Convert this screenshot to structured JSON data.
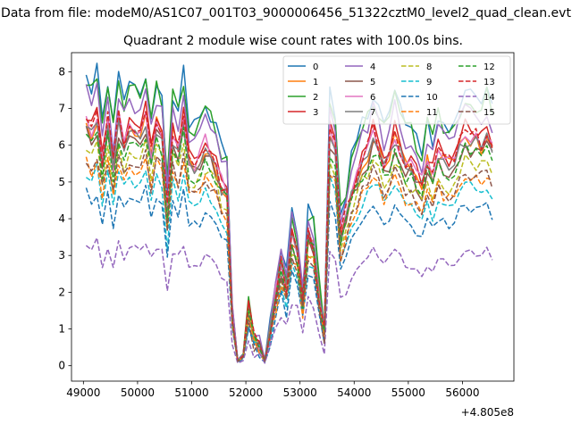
{
  "suptitle": "Data from file: modeM0/AS1C07_001T03_9000006456_51322cztM0_level2_quad_clean.evt",
  "chart_data": {
    "type": "line",
    "title": "Quadrant 2 module wise count rates with 100.0s bins.",
    "xlabel": "",
    "ylabel": "",
    "x_offset_label": "+4.805e8",
    "xlim": [
      48780,
      56950
    ],
    "ylim": [
      -0.42,
      8.52
    ],
    "xticks": [
      49000,
      50000,
      51000,
      52000,
      53000,
      54000,
      55000,
      56000
    ],
    "yticks": [
      0,
      1,
      2,
      3,
      4,
      5,
      6,
      7,
      8
    ],
    "grid": false,
    "legend": {
      "placement": "top-right",
      "columns": 4
    },
    "x_segments": [
      {
        "start": 49050,
        "end": 50950,
        "step": 100
      },
      {
        "start": 51050,
        "end": 53950,
        "step": 100
      },
      {
        "start": 54050,
        "end": 56550,
        "step": 100
      }
    ],
    "template": [
      0.98,
      0.93,
      0.99,
      0.82,
      0.97,
      0.8,
      0.98,
      0.88,
      0.96,
      0.93,
      0.9,
      0.99,
      0.84,
      0.96,
      0.92,
      0.62,
      0.93,
      0.86,
      0.98,
      0.82,
      0.8,
      0.82,
      0.88,
      0.85,
      0.8,
      0.72,
      0.7,
      0.2,
      0.02,
      0.04,
      0.22,
      0.1,
      0.08,
      0.02,
      0.14,
      0.28,
      0.4,
      0.3,
      0.52,
      0.45,
      0.26,
      0.52,
      0.48,
      0.28,
      0.12,
      0.92,
      0.86,
      0.52,
      0.6,
      0.7,
      0.76,
      0.82,
      0.85,
      0.92,
      0.88,
      0.8,
      0.84,
      0.92,
      0.86,
      0.8,
      0.8,
      0.76,
      0.72,
      0.82,
      0.76,
      0.85,
      0.82,
      0.8,
      0.82,
      0.88,
      0.92,
      0.9,
      0.9,
      0.88,
      0.92,
      0.86,
      0.82,
      0.9,
      0.84,
      0.86,
      0.9,
      0.96,
      0.9,
      0.95,
      0.9,
      0.92,
      0.93,
      0.95,
      0.95,
      0.96,
      0.94,
      0.95,
      0.96,
      0.12,
      0.0,
      0.0,
      0.0,
      0.0,
      0.0,
      0.0,
      0.0,
      0.0,
      0.0,
      0.0,
      0.0,
      0.0,
      0.0,
      0.72,
      0.06,
      0.52,
      0.04,
      0.86,
      0.02,
      0.52,
      0.34,
      0.7,
      0.55,
      0.66,
      0.25
    ],
    "series": [
      {
        "name": "0",
        "color": "#1f77b4",
        "dash": "solid",
        "peak": 8.05,
        "seed": 1
      },
      {
        "name": "1",
        "color": "#ff7f0e",
        "dash": "solid",
        "peak": 6.8,
        "seed": 2
      },
      {
        "name": "2",
        "color": "#2ca02c",
        "dash": "solid",
        "peak": 7.95,
        "seed": 3
      },
      {
        "name": "3",
        "color": "#d62728",
        "dash": "solid",
        "peak": 7.05,
        "seed": 4
      },
      {
        "name": "4",
        "color": "#9467bd",
        "dash": "solid",
        "peak": 7.6,
        "seed": 5
      },
      {
        "name": "5",
        "color": "#8c564b",
        "dash": "solid",
        "peak": 6.55,
        "seed": 6
      },
      {
        "name": "6",
        "color": "#e377c2",
        "dash": "solid",
        "peak": 6.9,
        "seed": 7
      },
      {
        "name": "7",
        "color": "#7f7f7f",
        "dash": "solid",
        "peak": 6.7,
        "seed": 8
      },
      {
        "name": "8",
        "color": "#bcbd22",
        "dash": "dashed",
        "peak": 6.1,
        "seed": 9
      },
      {
        "name": "9",
        "color": "#17becf",
        "dash": "dashed",
        "peak": 5.4,
        "seed": 10
      },
      {
        "name": "10",
        "color": "#1f77b4",
        "dash": "dashed",
        "peak": 4.8,
        "seed": 11
      },
      {
        "name": "11",
        "color": "#ff7f0e",
        "dash": "dashed",
        "peak": 5.7,
        "seed": 12
      },
      {
        "name": "12",
        "color": "#2ca02c",
        "dash": "dashed",
        "peak": 6.4,
        "seed": 13
      },
      {
        "name": "13",
        "color": "#d62728",
        "dash": "dashed",
        "peak": 6.9,
        "seed": 14
      },
      {
        "name": "14",
        "color": "#9467bd",
        "dash": "dashed",
        "peak": 3.4,
        "seed": 15
      },
      {
        "name": "15",
        "color": "#8c564b",
        "dash": "dashed",
        "peak": 5.8,
        "seed": 16
      }
    ]
  }
}
